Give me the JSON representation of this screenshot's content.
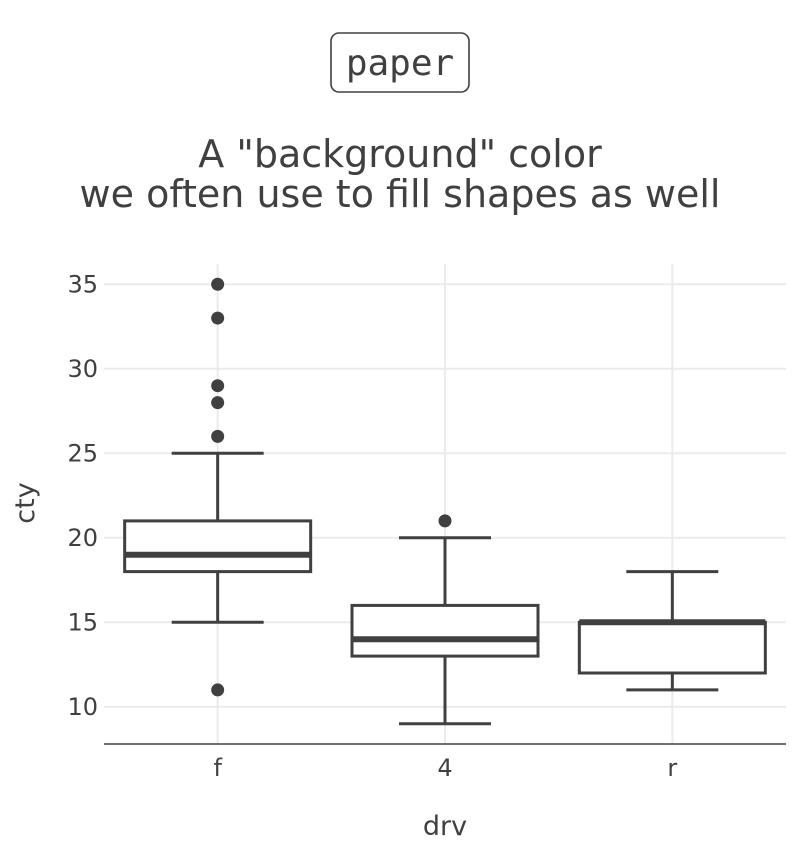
{
  "badge": "paper",
  "title_lines": [
    "A \"background\" color",
    "we often use to fill shapes as well"
  ],
  "colors": {
    "ink": "#404040",
    "grid": "#ebebeb",
    "fill": "#ffffff"
  },
  "chart_data": {
    "type": "boxplot",
    "xlabel": "drv",
    "ylabel": "cty",
    "ylim": [
      7.8,
      36.2
    ],
    "yticks": [
      10,
      15,
      20,
      25,
      30,
      35
    ],
    "grid": true,
    "categories": [
      "f",
      "4",
      "r"
    ],
    "boxes": [
      {
        "category": "f",
        "q1": 18,
        "median": 19,
        "q3": 21,
        "whisker_low": 15,
        "whisker_high": 25,
        "outliers": [
          35,
          33,
          29,
          28,
          26,
          11
        ]
      },
      {
        "category": "4",
        "q1": 13,
        "median": 14,
        "q3": 16,
        "whisker_low": 9,
        "whisker_high": 20,
        "outliers": [
          21
        ]
      },
      {
        "category": "r",
        "q1": 12,
        "median": 15,
        "q3": 15,
        "whisker_low": 11,
        "whisker_high": 18,
        "outliers": []
      }
    ]
  }
}
